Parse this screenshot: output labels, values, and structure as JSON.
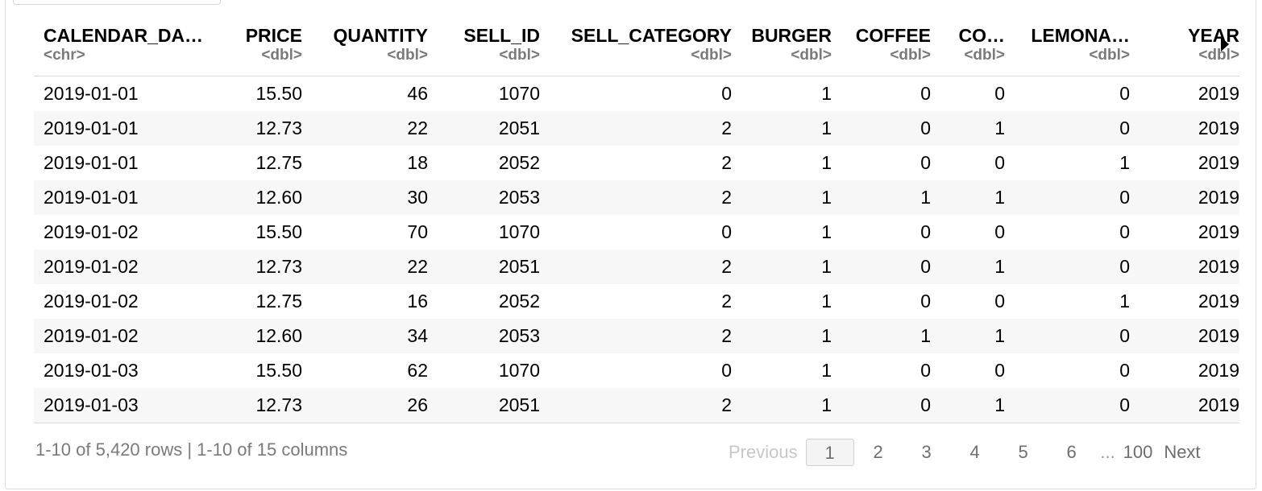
{
  "columns": [
    {
      "name": "CALENDAR_DA…",
      "type": "<chr>"
    },
    {
      "name": "PRICE",
      "type": "<dbl>"
    },
    {
      "name": "QUANTITY",
      "type": "<dbl>"
    },
    {
      "name": "SELL_ID",
      "type": "<dbl>"
    },
    {
      "name": "SELL_CATEGORY",
      "type": "<dbl>"
    },
    {
      "name": "BURGER",
      "type": "<dbl>"
    },
    {
      "name": "COFFEE",
      "type": "<dbl>"
    },
    {
      "name": "CO…",
      "type": "<dbl>"
    },
    {
      "name": "LEMONA…",
      "type": "<dbl>"
    },
    {
      "name": "YEAR",
      "type": "<dbl>"
    }
  ],
  "rows": [
    [
      "2019-01-01",
      "15.50",
      "46",
      "1070",
      "0",
      "1",
      "0",
      "0",
      "0",
      "2019"
    ],
    [
      "2019-01-01",
      "12.73",
      "22",
      "2051",
      "2",
      "1",
      "0",
      "1",
      "0",
      "2019"
    ],
    [
      "2019-01-01",
      "12.75",
      "18",
      "2052",
      "2",
      "1",
      "0",
      "0",
      "1",
      "2019"
    ],
    [
      "2019-01-01",
      "12.60",
      "30",
      "2053",
      "2",
      "1",
      "1",
      "1",
      "0",
      "2019"
    ],
    [
      "2019-01-02",
      "15.50",
      "70",
      "1070",
      "0",
      "1",
      "0",
      "0",
      "0",
      "2019"
    ],
    [
      "2019-01-02",
      "12.73",
      "22",
      "2051",
      "2",
      "1",
      "0",
      "1",
      "0",
      "2019"
    ],
    [
      "2019-01-02",
      "12.75",
      "16",
      "2052",
      "2",
      "1",
      "0",
      "0",
      "1",
      "2019"
    ],
    [
      "2019-01-02",
      "12.60",
      "34",
      "2053",
      "2",
      "1",
      "1",
      "1",
      "0",
      "2019"
    ],
    [
      "2019-01-03",
      "15.50",
      "62",
      "1070",
      "0",
      "1",
      "0",
      "0",
      "0",
      "2019"
    ],
    [
      "2019-01-03",
      "12.73",
      "26",
      "2051",
      "2",
      "1",
      "0",
      "1",
      "0",
      "2019"
    ]
  ],
  "footer": {
    "info": "1-10 of 5,420 rows | 1-10 of 15 columns"
  },
  "pagination": {
    "previous": "Previous",
    "current": "1",
    "pages": [
      "2",
      "3",
      "4",
      "5",
      "6"
    ],
    "ellipsis": "...",
    "last": "100",
    "next": "Next"
  },
  "icons": {
    "next_columns": "caret-right-icon"
  }
}
